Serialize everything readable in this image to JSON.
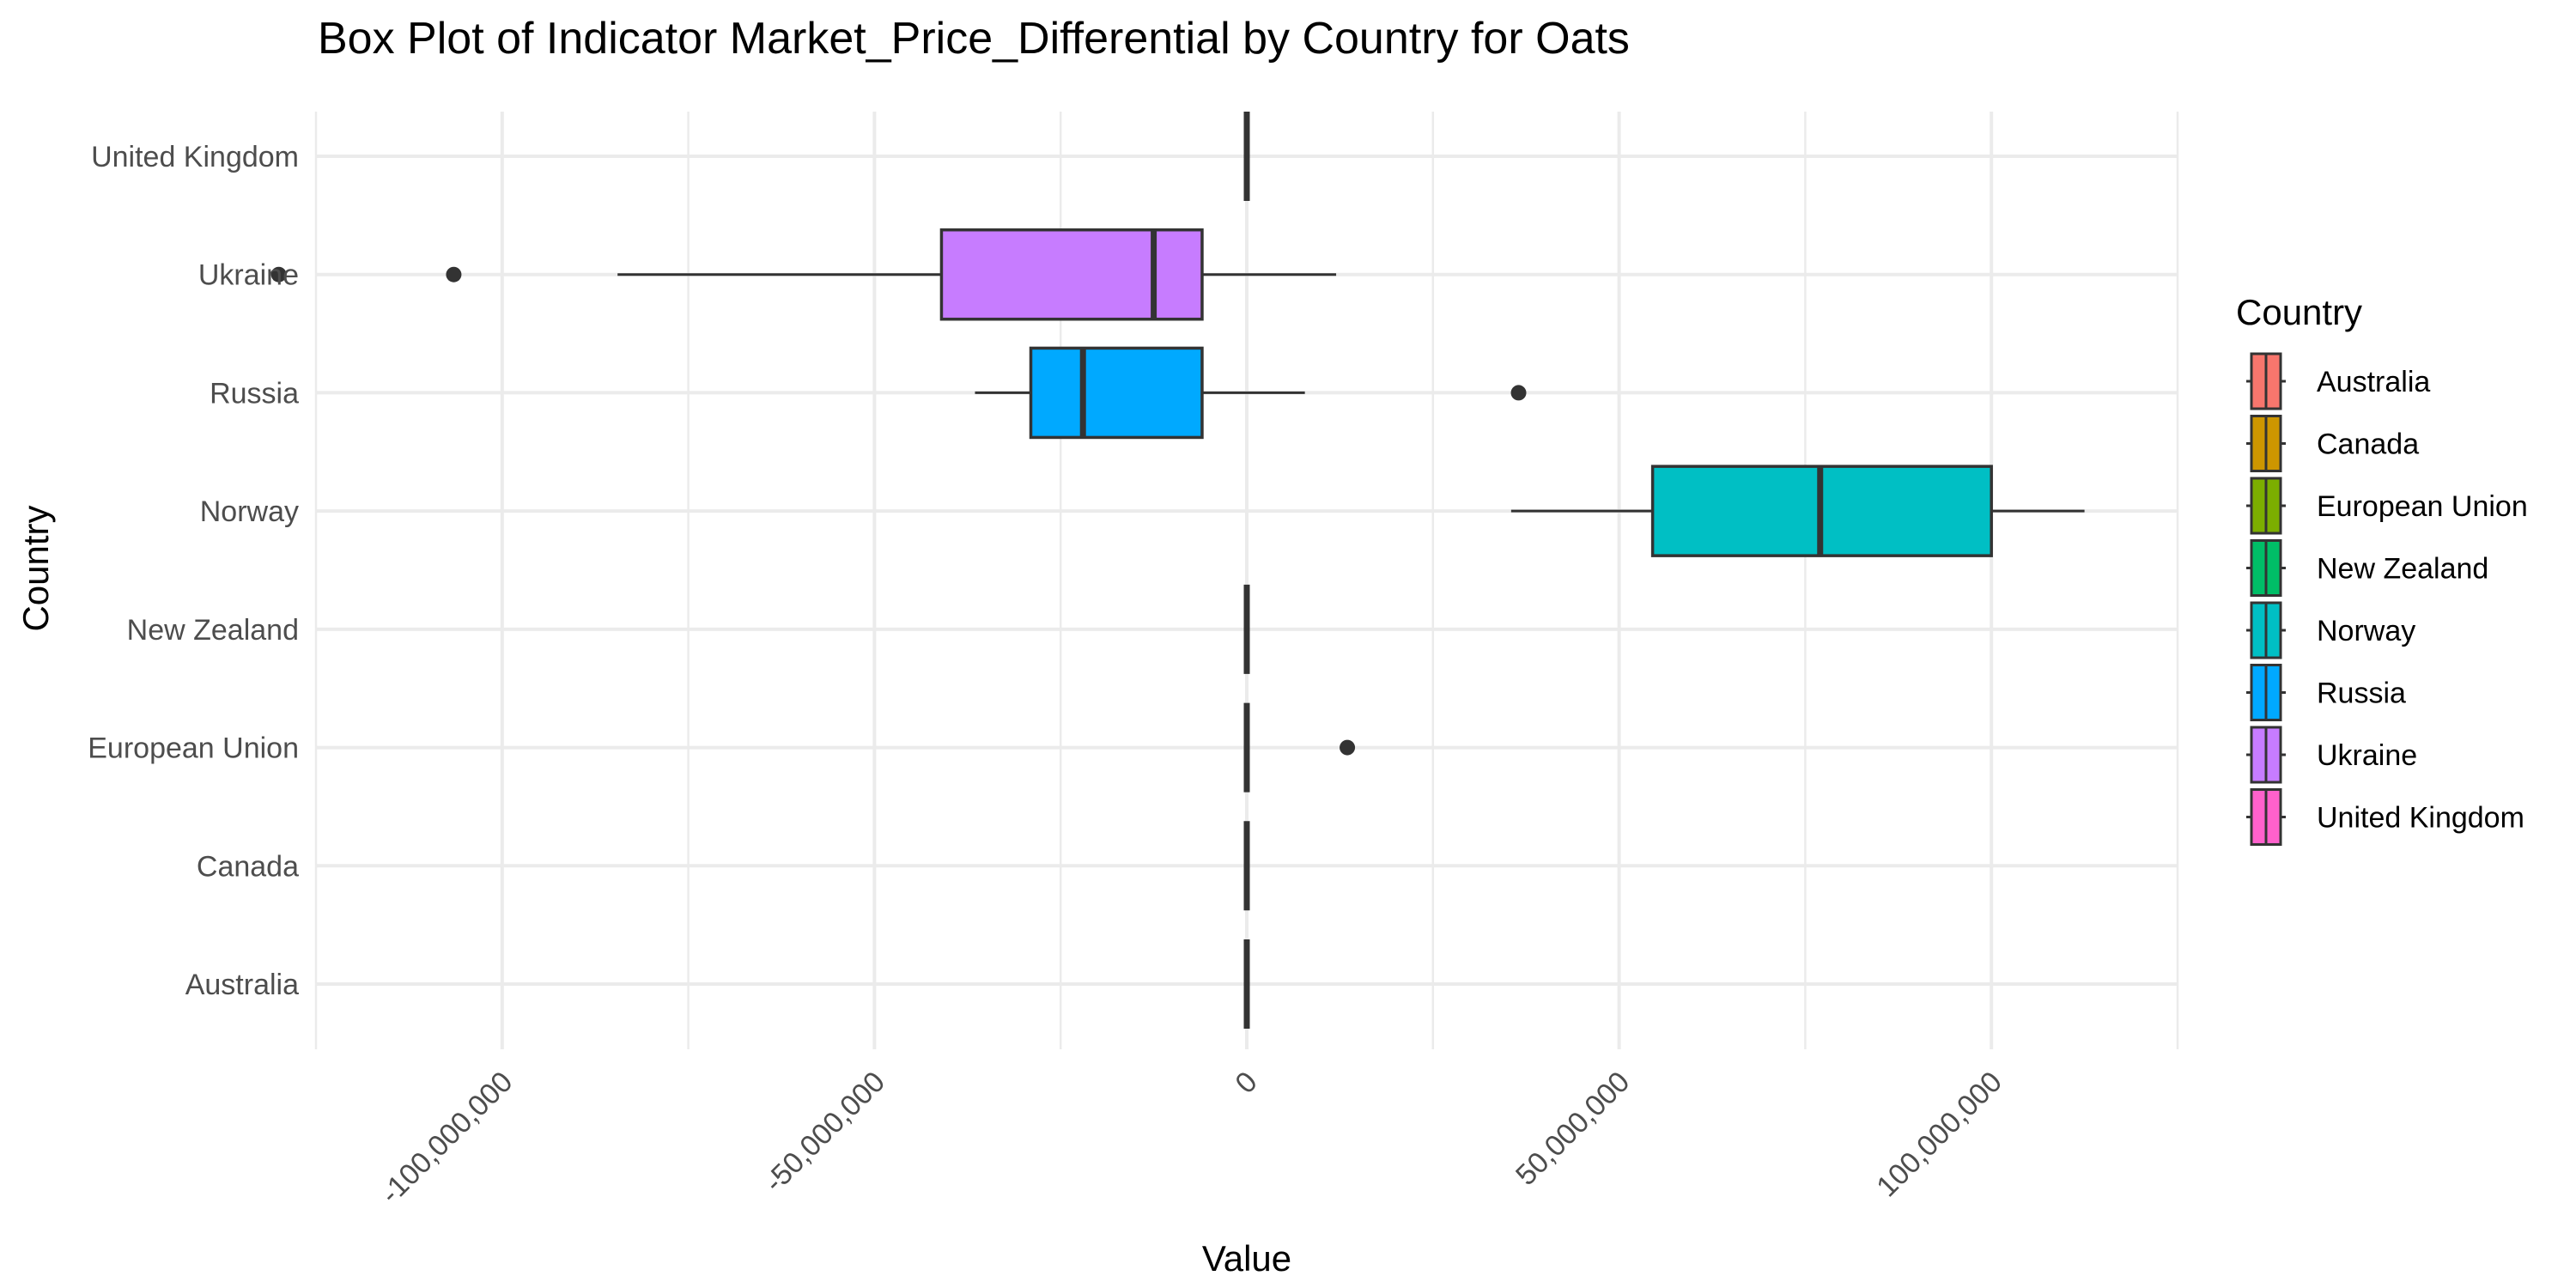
{
  "chart_data": {
    "type": "boxplot",
    "title": "Box Plot of Indicator Market_Price_Differential by Country for Oats",
    "xlabel": "Value",
    "ylabel": "Country",
    "xlim": [
      -125000000,
      125000000
    ],
    "x_ticks": [
      {
        "value": -100000000,
        "label": "-100,000,000"
      },
      {
        "value": -50000000,
        "label": "-50,000,000"
      },
      {
        "value": 0,
        "label": "0"
      },
      {
        "value": 50000000,
        "label": "50,000,000"
      },
      {
        "value": 100000000,
        "label": "100,000,000"
      }
    ],
    "grid": true,
    "legend": {
      "title": "Country",
      "position": "right"
    },
    "series": [
      {
        "name": "Australia",
        "color": "#F8766D",
        "min": 0,
        "q1": 0,
        "median": 0,
        "q3": 0,
        "max": 0,
        "outliers": []
      },
      {
        "name": "Canada",
        "color": "#CD9600",
        "min": 0,
        "q1": 0,
        "median": 0,
        "q3": 0,
        "max": 0,
        "outliers": []
      },
      {
        "name": "European Union",
        "color": "#7CAE00",
        "min": 0,
        "q1": 0,
        "median": 0,
        "q3": 0,
        "max": 0,
        "outliers": [
          13500000
        ]
      },
      {
        "name": "New Zealand",
        "color": "#00BE67",
        "min": 0,
        "q1": 0,
        "median": 0,
        "q3": 0,
        "max": 0,
        "outliers": []
      },
      {
        "name": "Norway",
        "color": "#00BFC4",
        "min": 35500000,
        "q1": 54500000,
        "median": 77000000,
        "q3": 100000000,
        "max": 112500000,
        "outliers": []
      },
      {
        "name": "Russia",
        "color": "#00A9FF",
        "min": -36500000,
        "q1": -29000000,
        "median": -22000000,
        "q3": -6000000,
        "max": 7800000,
        "outliers": [
          36500000
        ]
      },
      {
        "name": "Ukraine",
        "color": "#C77CFF",
        "min": -84500000,
        "q1": -41000000,
        "median": -12500000,
        "q3": -6000000,
        "max": 12000000,
        "outliers": [
          -106500000,
          -130000000
        ]
      },
      {
        "name": "United Kingdom",
        "color": "#FF61CC",
        "min": 0,
        "q1": 0,
        "median": 0,
        "q3": 0,
        "max": 0,
        "outliers": []
      }
    ]
  }
}
